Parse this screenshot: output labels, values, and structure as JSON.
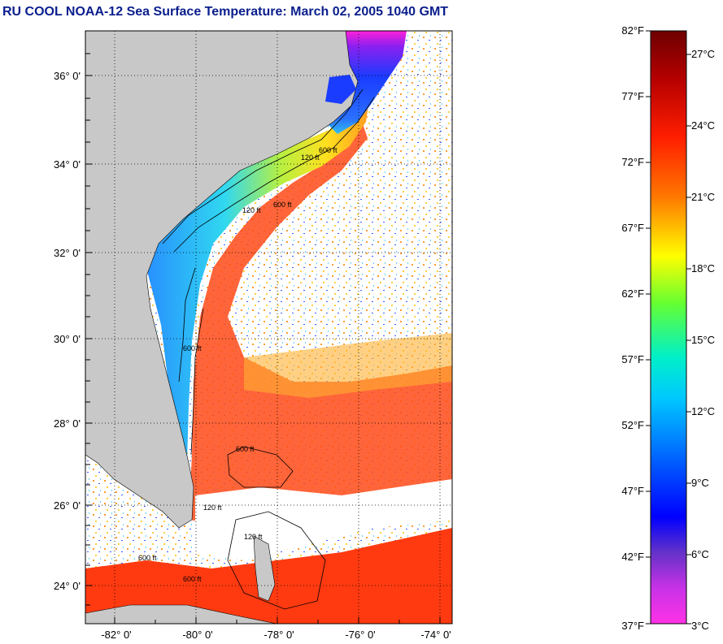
{
  "title": "RU COOL  NOAA-12  Sea Surface Temperature:  March 02, 2005 1040 GMT",
  "map": {
    "lat_labels": [
      "36° 0'",
      "34° 0'",
      "32° 0'",
      "30° 0'",
      "28° 0'",
      "26° 0'",
      "24° 0'"
    ],
    "lon_labels": [
      "-82° 0'",
      "-80° 0'",
      "-78° 0'",
      "-76° 0'",
      "-74° 0'"
    ],
    "contour_labels": [
      "120 ft",
      "600 ft",
      "120 ft",
      "600 ft",
      "600 ft",
      "120 ft",
      "600 ft",
      "600 ft",
      "600 ft",
      "120 ft"
    ],
    "colors": {
      "land": "#c8c8c8",
      "cloud": "#ffffff",
      "warm": "#ff3a10",
      "orange": "#ff8a1e",
      "yellow": "#ffe61e",
      "cyan": "#28d2f0",
      "blue": "#1a3cff",
      "violet": "#7a1ee6",
      "magenta": "#ff20d8"
    }
  },
  "colorbar": {
    "f_labels": [
      "82°F",
      "77°F",
      "72°F",
      "67°F",
      "62°F",
      "57°F",
      "52°F",
      "47°F",
      "42°F",
      "37°F"
    ],
    "c_labels": [
      "27°C",
      "24°C",
      "21°C",
      "18°C",
      "15°C",
      "12°C",
      "9°C",
      "6°C",
      "3°C"
    ],
    "colors_top_to_bottom": [
      "#6e0000",
      "#b40000",
      "#ff1e00",
      "#ff7800",
      "#ffc800",
      "#ffff00",
      "#64ff32",
      "#00f0c8",
      "#00c8ff",
      "#0064ff",
      "#0000ff",
      "#6432c8",
      "#c832e6",
      "#ff32e6"
    ]
  }
}
